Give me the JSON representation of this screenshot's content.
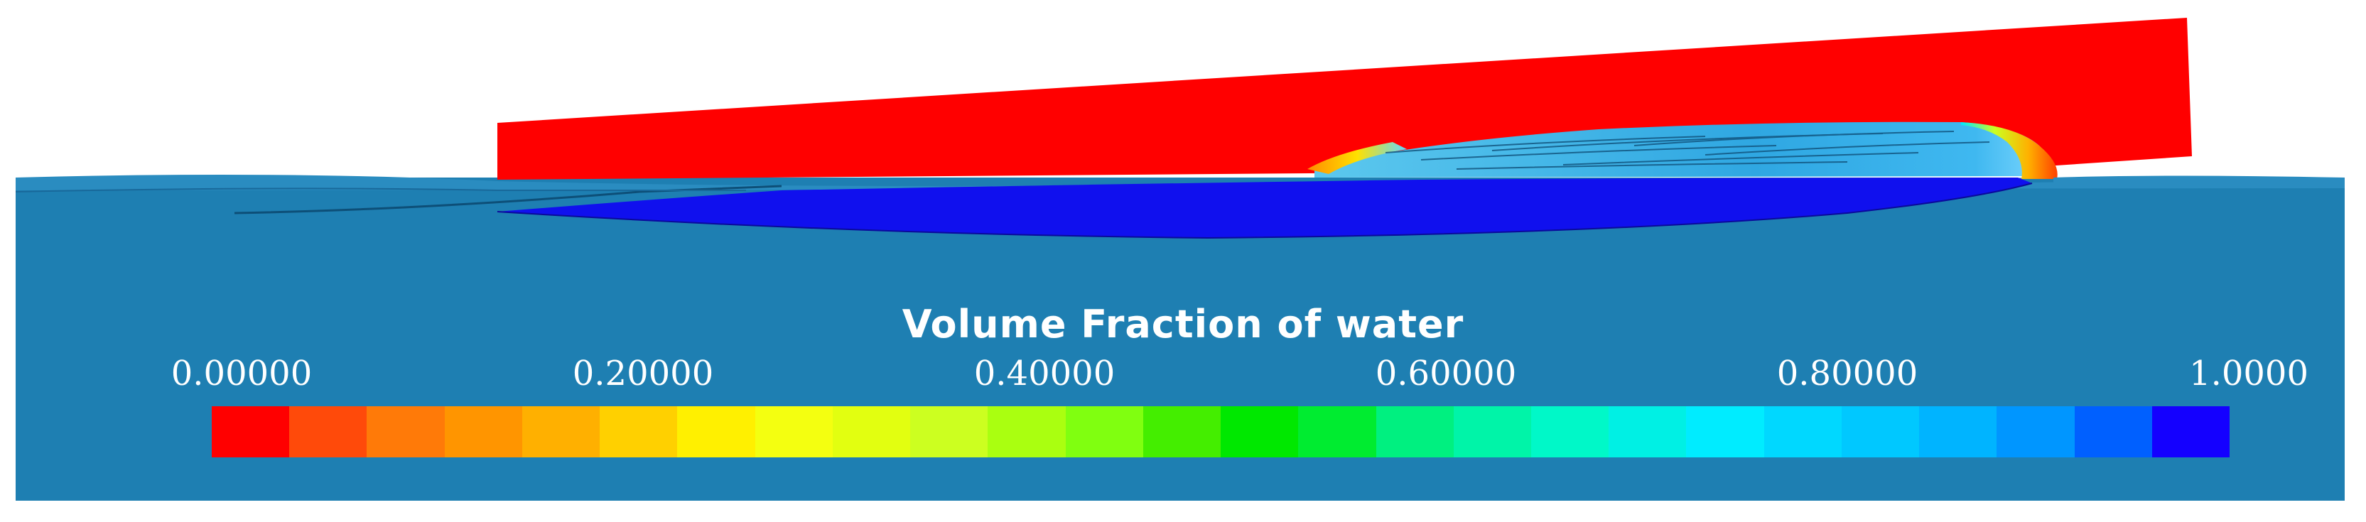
{
  "legend": {
    "title": "Volume Fraction of water",
    "ticks": [
      "0.00000",
      "0.20000",
      "0.40000",
      "0.60000",
      "0.80000",
      "1.0000"
    ],
    "tick_values": [
      0.0,
      0.2,
      0.4,
      0.6,
      0.8,
      1.0
    ],
    "colors": [
      "#ff0000",
      "#ff4a0a",
      "#ff7a08",
      "#ff9500",
      "#ffb000",
      "#ffd000",
      "#fff000",
      "#f4ff10",
      "#e2ff10",
      "#ccff20",
      "#aaff10",
      "#80ff10",
      "#44ee00",
      "#00e800",
      "#00ec30",
      "#00f080",
      "#00f4a8",
      "#00f8c8",
      "#00f0e4",
      "#00ecff",
      "#00d8ff",
      "#00c8ff",
      "#00b4ff",
      "#0096ff",
      "#0060ff",
      "#1400ff"
    ]
  },
  "scene": {
    "background_color": "#1e7fb2",
    "plate_color": "#ff0000",
    "water_region_color": "#1010ee"
  }
}
